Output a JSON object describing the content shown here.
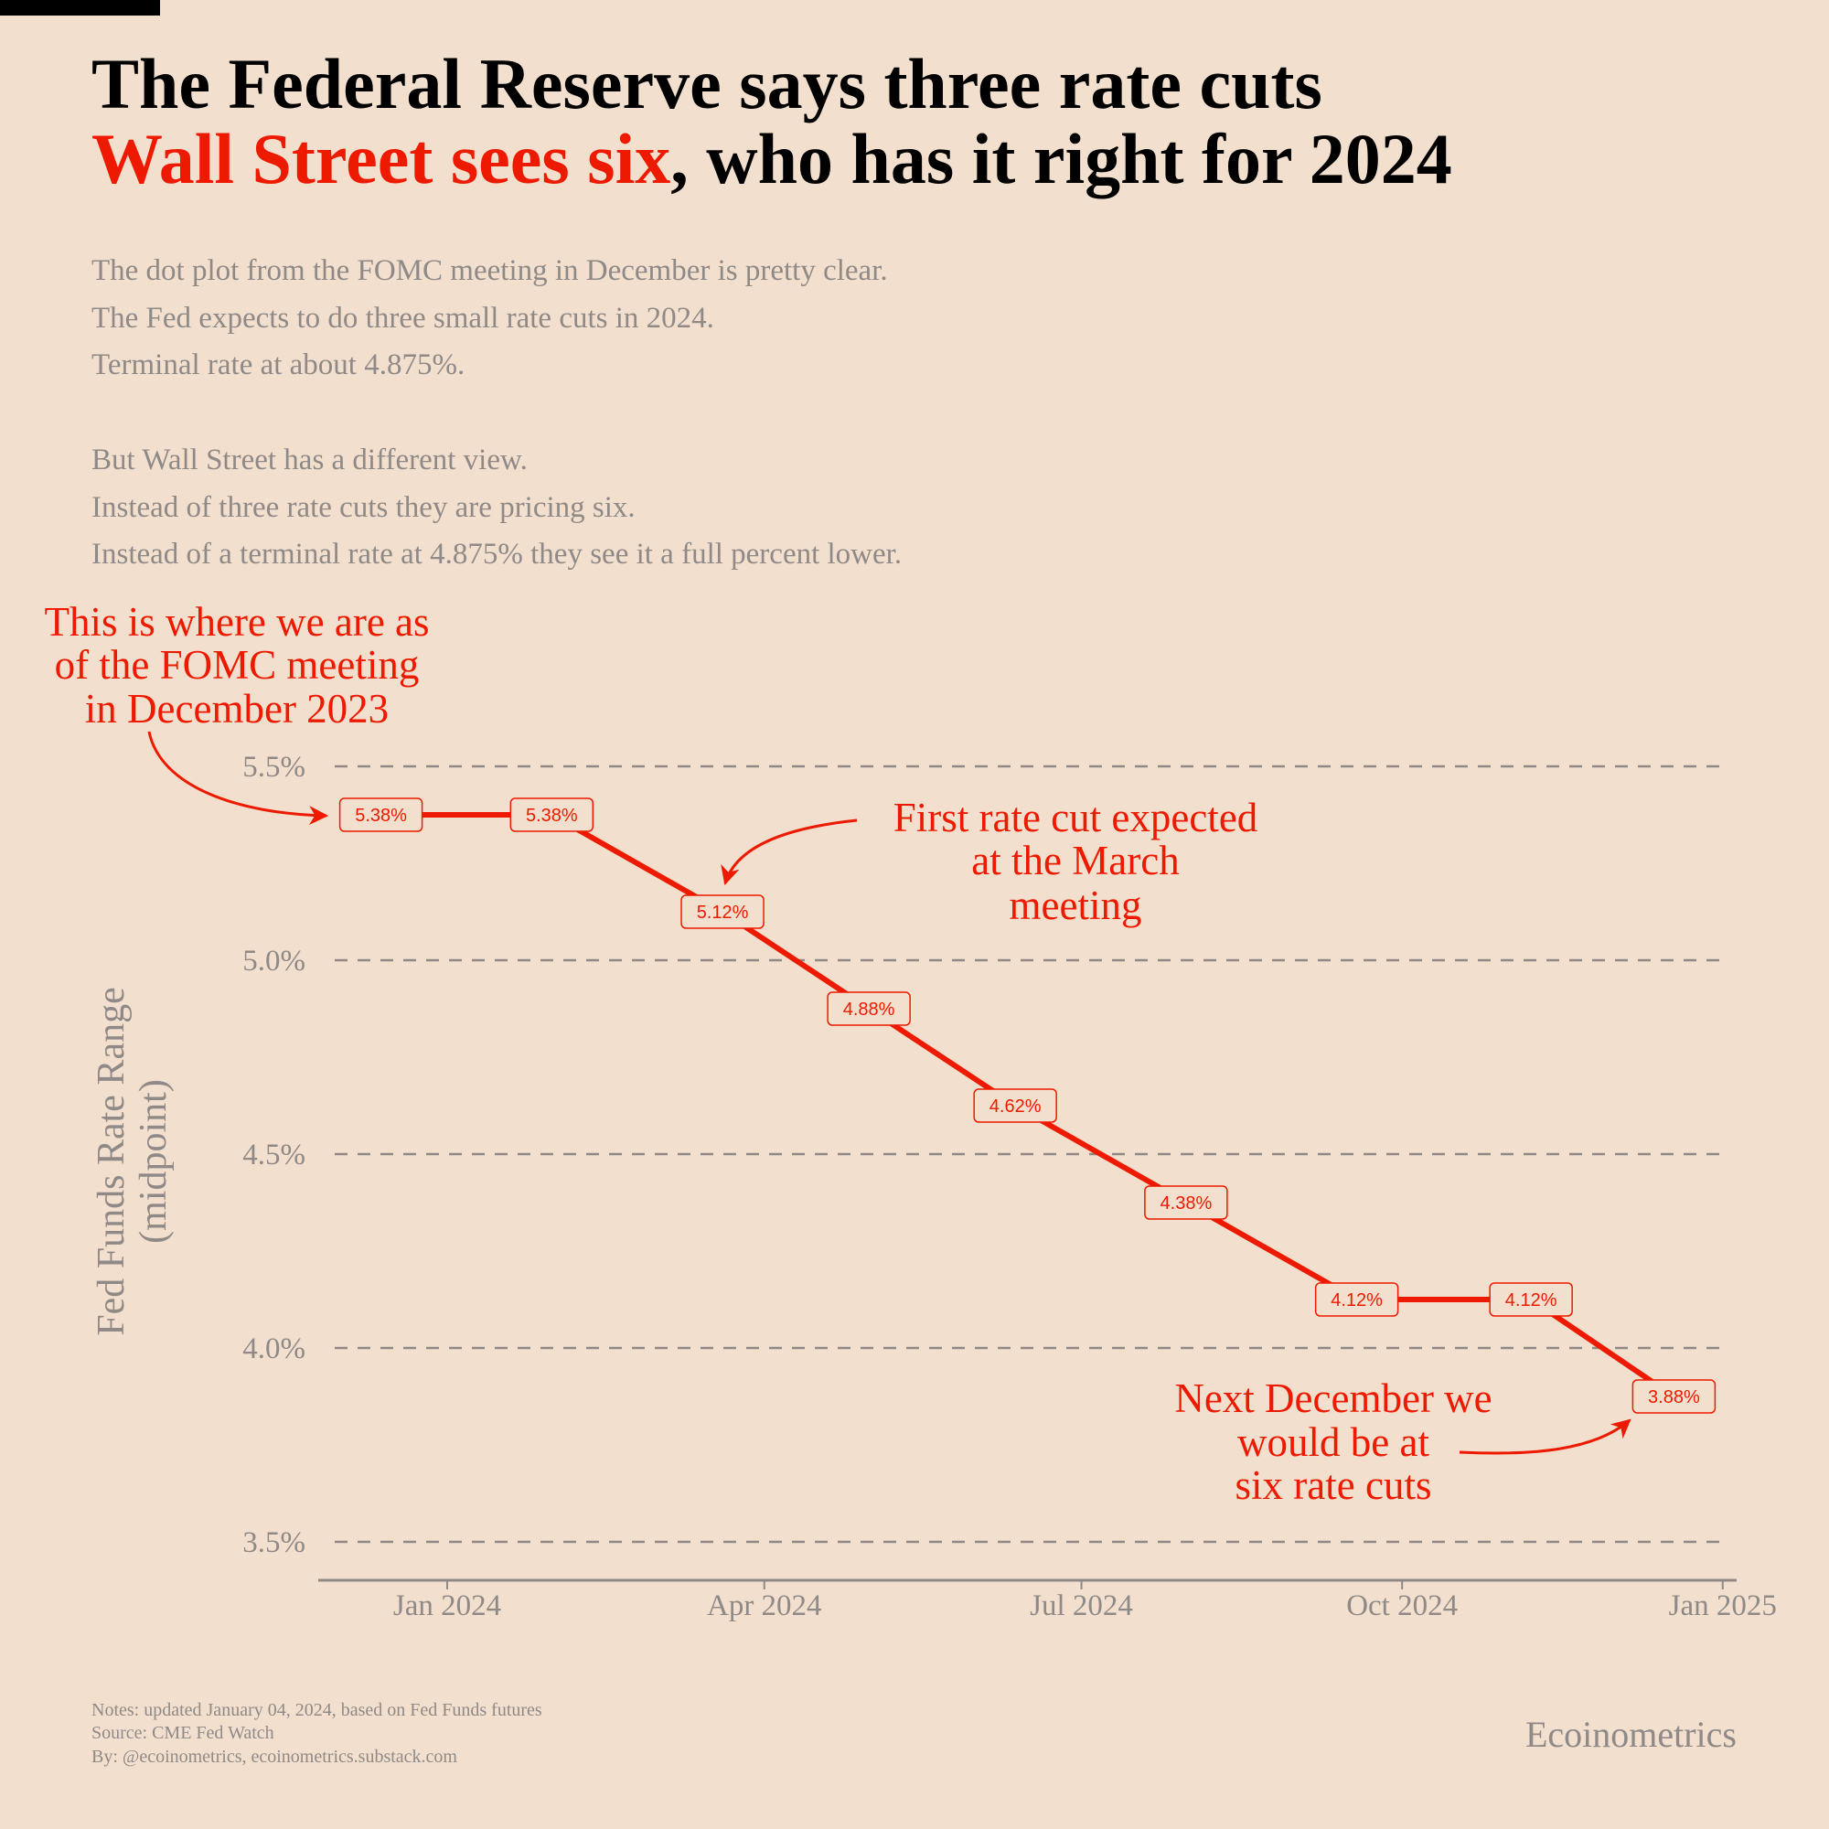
{
  "title": {
    "line1": "The Federal Reserve says three rate cuts",
    "line2_highlight": "Wall Street sees six",
    "line2_rest": ", who has it right for 2024"
  },
  "subtitle": [
    "The dot plot from the FOMC meeting in December is pretty clear.",
    "The Fed expects to do three small rate cuts in 2024.",
    "Terminal rate at about 4.875%.",
    "But Wall Street has a different view.",
    "Instead of three rate cuts they are pricing six.",
    "Instead of a terminal rate at 4.875% they see it a full percent lower."
  ],
  "annotations": {
    "start": [
      "This is where we are as",
      "of the FOMC meeting",
      "in December 2023"
    ],
    "march": [
      "First rate cut expected",
      "at the March",
      "meeting"
    ],
    "end": [
      "Next December we",
      "would be at",
      "six rate cuts"
    ]
  },
  "footer": {
    "notes": "Notes: updated January 04, 2024, based on Fed Funds futures",
    "source": "Source: CME Fed Watch",
    "by": "By: @ecoinometrics, ecoinometrics.substack.com",
    "brand": "Ecoinometrics"
  },
  "colors": {
    "background": "#f2dfce",
    "accent": "#ee1a00",
    "text_gray": "#8f8a87",
    "title": "#000000"
  },
  "chart_data": {
    "type": "line",
    "title": "",
    "xlabel": "",
    "ylabel": [
      "Fed Funds Rate Range",
      "(midpoint)"
    ],
    "x": [
      "2023-12-13",
      "2024-01-31",
      "2024-03-20",
      "2024-05-01",
      "2024-06-12",
      "2024-07-31",
      "2024-09-18",
      "2024-11-07",
      "2024-12-18"
    ],
    "values": [
      5.375,
      5.375,
      5.125,
      4.875,
      4.625,
      4.375,
      4.125,
      4.125,
      3.875
    ],
    "data_labels": [
      "5.38%",
      "5.38%",
      "5.12%",
      "4.88%",
      "4.62%",
      "4.38%",
      "4.12%",
      "4.12%",
      "3.88%"
    ],
    "xlim": [
      "2023-11-25",
      "2025-01-05"
    ],
    "ylim": [
      3.4,
      5.6
    ],
    "x_ticks": [
      {
        "date": "2024-01-01",
        "label": "Jan 2024"
      },
      {
        "date": "2024-04-01",
        "label": "Apr 2024"
      },
      {
        "date": "2024-07-01",
        "label": "Jul 2024"
      },
      {
        "date": "2024-10-01",
        "label": "Oct 2024"
      },
      {
        "date": "2025-01-01",
        "label": "Jan 2025"
      }
    ],
    "y_ticks": [
      {
        "value": 3.5,
        "label": "3.5%"
      },
      {
        "value": 4.0,
        "label": "4.0%"
      },
      {
        "value": 4.5,
        "label": "4.5%"
      },
      {
        "value": 5.0,
        "label": "5.0%"
      },
      {
        "value": 5.5,
        "label": "5.5%"
      }
    ],
    "grid": "horizontal dashed",
    "legend": "none"
  }
}
